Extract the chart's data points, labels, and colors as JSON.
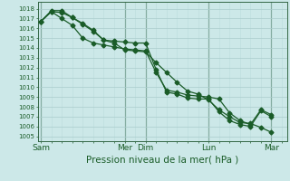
{
  "title": "Pression niveau de la mer( hPa )",
  "bg_color": "#cce8e8",
  "grid_major_color": "#aacccc",
  "grid_minor_color": "#bbdddd",
  "line_color": "#1a5c28",
  "separator_color": "#336644",
  "ylim": [
    1004.5,
    1018.7
  ],
  "ytick_min": 1005,
  "ytick_max": 1018,
  "xtick_labels": [
    "Sam",
    "Mer",
    "Dim",
    "Lun",
    "Mar"
  ],
  "xtick_positions": [
    0,
    8,
    10,
    16,
    22
  ],
  "xlim": [
    -0.3,
    23.5
  ],
  "series1_x": [
    0,
    1,
    2,
    3,
    4,
    5,
    6,
    7,
    8,
    9,
    10,
    11,
    12,
    13,
    14,
    15,
    16,
    17,
    18,
    19,
    20,
    21,
    22
  ],
  "series1_y": [
    1016.7,
    1017.7,
    1017.6,
    1017.1,
    1016.5,
    1015.8,
    1014.8,
    1014.5,
    1013.8,
    1013.7,
    1013.6,
    1012.5,
    1011.5,
    1010.5,
    1009.6,
    1009.3,
    1008.7,
    1007.7,
    1007.0,
    1006.4,
    1006.3,
    1005.9,
    1005.4
  ],
  "series2_x": [
    0,
    1,
    2,
    3,
    4,
    5,
    6,
    7,
    8,
    9,
    10,
    11,
    12,
    13,
    14,
    15,
    16,
    17,
    18,
    19,
    20,
    21,
    22
  ],
  "series2_y": [
    1016.7,
    1017.8,
    1017.8,
    1017.1,
    1016.4,
    1015.7,
    1014.8,
    1014.7,
    1014.6,
    1014.5,
    1014.5,
    1011.8,
    1009.5,
    1009.3,
    1008.9,
    1008.8,
    1008.8,
    1007.5,
    1006.6,
    1006.2,
    1006.0,
    1007.6,
    1007.0
  ],
  "series3_x": [
    0,
    1,
    2,
    3,
    4,
    5,
    6,
    7,
    8,
    9,
    10,
    11,
    12,
    13,
    14,
    15,
    16,
    17,
    18,
    19,
    20,
    21,
    22
  ],
  "series3_y": [
    1016.7,
    1017.7,
    1017.0,
    1016.3,
    1015.0,
    1014.5,
    1014.3,
    1014.1,
    1013.9,
    1013.8,
    1013.7,
    1011.5,
    1009.7,
    1009.5,
    1009.2,
    1009.1,
    1009.0,
    1008.8,
    1007.4,
    1006.6,
    1006.2,
    1007.7,
    1007.2
  ],
  "ytick_fontsize": 5.0,
  "xtick_fontsize": 6.5,
  "xlabel_fontsize": 7.5
}
